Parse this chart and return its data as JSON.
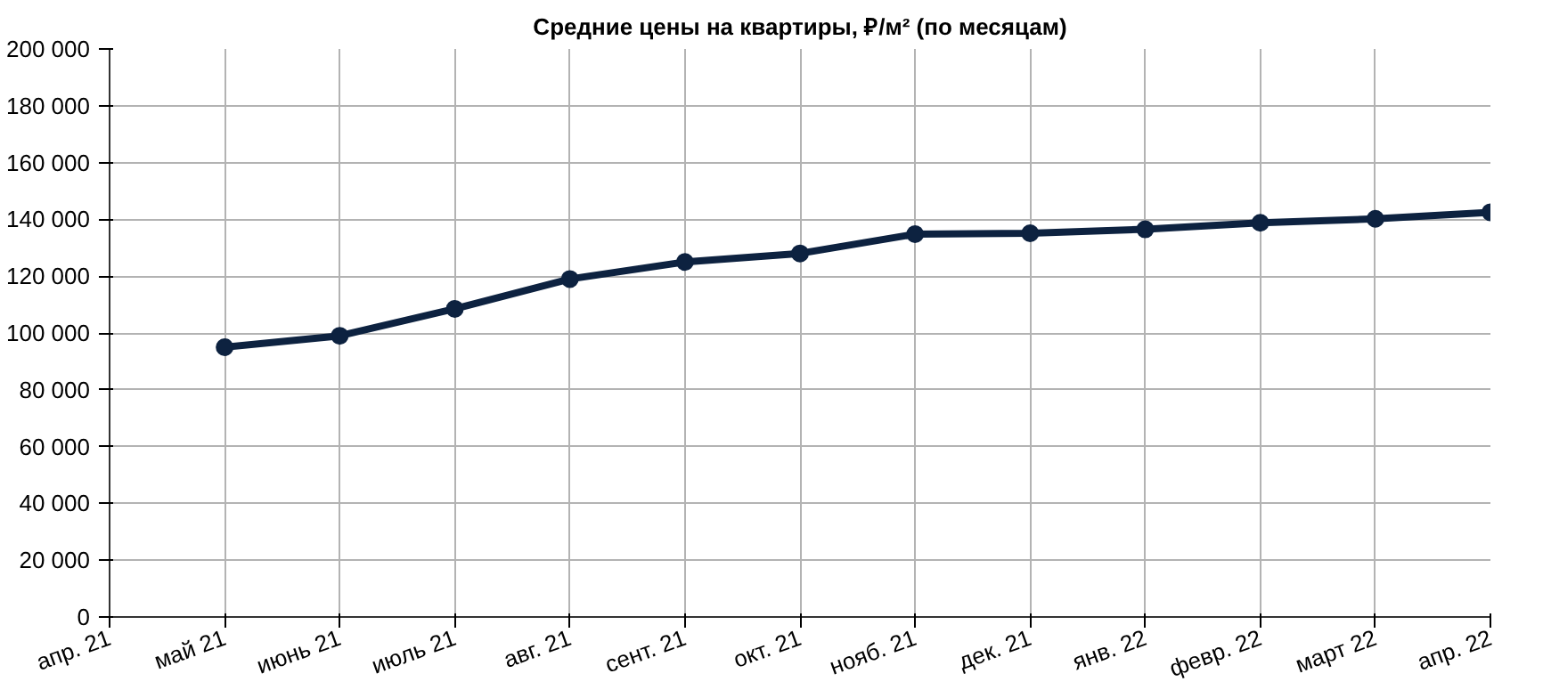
{
  "chart_data": {
    "type": "line",
    "title": "Средние цены на квартиры, ₽/м² (по месяцам)",
    "categories": [
      "апр. 21",
      "май 21",
      "июнь 21",
      "июль 21",
      "авг. 21",
      "сент. 21",
      "окт. 21",
      "нояб. 21",
      "дек. 21",
      "янв. 22",
      "февр. 22",
      "март 22",
      "апр. 22"
    ],
    "series": [
      {
        "color": "#0d2240",
        "values": [
          null,
          95000,
          99000,
          108500,
          119000,
          125000,
          128000,
          134800,
          135100,
          136500,
          138800,
          140200,
          142500
        ]
      }
    ],
    "ylim": [
      0,
      200000
    ],
    "yticks": [
      0,
      {
        "value": 20000,
        "label": "20 000"
      },
      {
        "value": 40000,
        "label": "40 000"
      },
      {
        "value": 60000,
        "label": "60 000"
      },
      {
        "value": 80000,
        "label": "80 000"
      },
      {
        "value": 100000,
        "label": "100 000"
      },
      {
        "value": 120000,
        "label": "120 000"
      },
      {
        "value": 140000,
        "label": "140 000"
      },
      {
        "value": 160000,
        "label": "160 000"
      },
      {
        "value": 180000,
        "label": "180 000"
      },
      {
        "value": 200000,
        "label": "200 000"
      }
    ],
    "grid": true,
    "marker": "circle",
    "line_style": "solid"
  }
}
